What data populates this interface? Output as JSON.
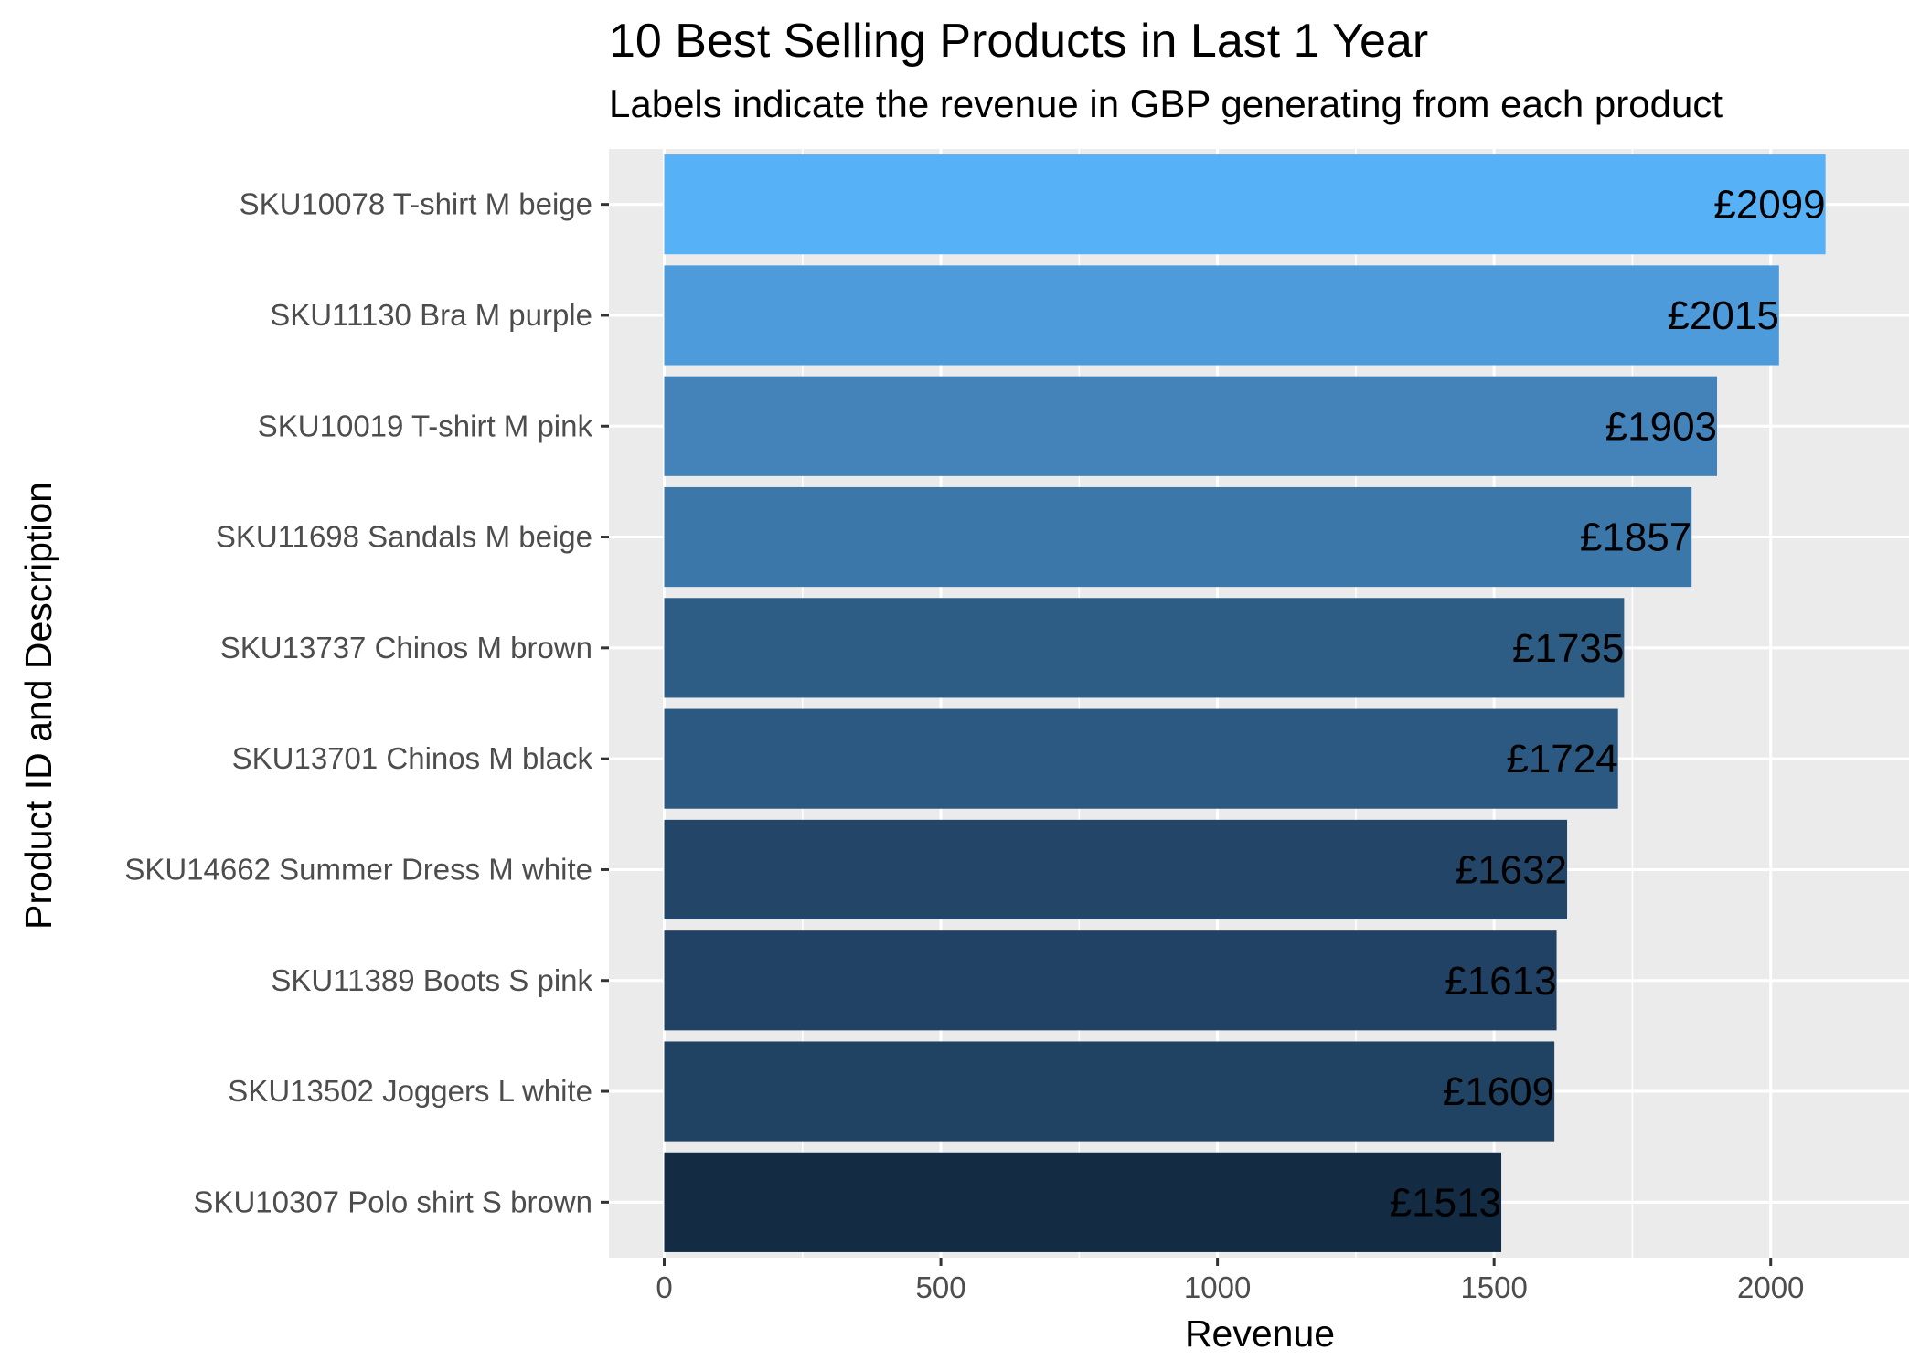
{
  "chart_data": {
    "type": "bar",
    "orientation": "horizontal",
    "title": "10 Best Selling Products in Last 1 Year",
    "subtitle": "Labels indicate the revenue in GBP generating from each product",
    "xlabel": "Revenue",
    "ylabel": "Product ID and Description",
    "xlim": [
      -100,
      2250
    ],
    "xticks": [
      "0",
      "500",
      "1000",
      "1500",
      "2000"
    ],
    "grid": true,
    "legend": "none",
    "background_color": "#EBEBEB",
    "gridline_color": "#FFFFFF",
    "categories": [
      "SKU10078 T-shirt M beige",
      "SKU11130 Bra M purple",
      "SKU10019 T-shirt M pink",
      "SKU11698 Sandals M beige",
      "SKU13737 Chinos M brown",
      "SKU13701 Chinos M black",
      "SKU14662 Summer Dress M white",
      "SKU11389 Boots S pink",
      "SKU13502 Joggers L white",
      "SKU10307 Polo shirt S brown"
    ],
    "values": [
      2099,
      2015,
      1903,
      1857,
      1735,
      1724,
      1632,
      1613,
      1609,
      1513
    ],
    "data_labels": [
      "£2099",
      "£2015",
      "£1903",
      "£1857",
      "£1735",
      "£1724",
      "£1632",
      "£1613",
      "£1609",
      "£1513"
    ],
    "colors": [
      "#56B1F7",
      "#4E9BDC",
      "#4383BA",
      "#3B77A8",
      "#2D5C84",
      "#2C5981",
      "#234668",
      "#214264",
      "#204263",
      "#132B43"
    ]
  }
}
